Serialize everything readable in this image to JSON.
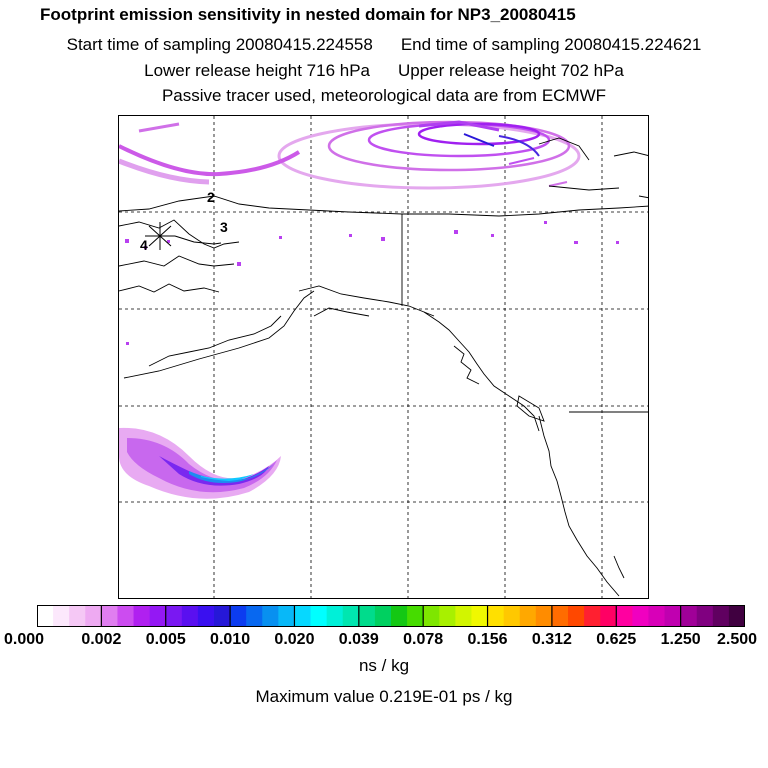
{
  "title": "Footprint emission sensitivity in nested domain for NP3_20080415",
  "sampling": {
    "start": "Start time of sampling 20080415.224558",
    "end": "End time of sampling 20080415.224621"
  },
  "release": {
    "lower": "Lower release height  716 hPa",
    "upper": "Upper release height  702 hPa"
  },
  "tracer_note": "Passive tracer used, meteorological data are from ECMWF",
  "flight_markers": [
    "2",
    "3",
    "4"
  ],
  "colorbar": {
    "labels": [
      "0.000",
      "0.002",
      "0.005",
      "0.010",
      "0.020",
      "0.039",
      "0.078",
      "0.156",
      "0.312",
      "0.625",
      "1.250",
      "2.500"
    ],
    "colors": [
      "#ffffff",
      "#fce8fc",
      "#f5c8f5",
      "#eeaaf2",
      "#e07ef0",
      "#cc4cf0",
      "#b020f0",
      "#9418f4",
      "#7a18f2",
      "#5a10f0",
      "#3a10f0",
      "#2618d8",
      "#0c3cf0",
      "#0868f0",
      "#0890f0",
      "#08b8f8",
      "#06d8ff",
      "#00ffff",
      "#00f0d8",
      "#00e6b0",
      "#00dc8c",
      "#00d060",
      "#14c814",
      "#46dc00",
      "#7ee600",
      "#a8f000",
      "#d2f500",
      "#f0f800",
      "#ffe000",
      "#ffc800",
      "#ffa800",
      "#ff8c00",
      "#ff6c00",
      "#ff4800",
      "#ff2030",
      "#ff0064",
      "#ff00a0",
      "#f000c0",
      "#d800b8",
      "#c000b0",
      "#a00098",
      "#800080",
      "#600060",
      "#400040"
    ]
  },
  "unit": "ns / kg",
  "max_value": "Maximum value  0.219E-01 ps / kg"
}
